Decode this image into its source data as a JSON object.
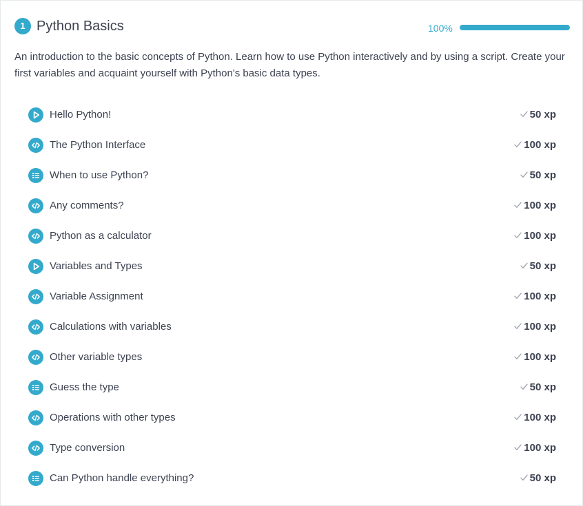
{
  "chapter": {
    "number": "1",
    "title": "Python Basics",
    "progress_label": "100%",
    "progress_value": 100,
    "description": "An introduction to the basic concepts of Python. Learn how to use Python interactively and by using a script. Create your first variables and acquaint yourself with Python's basic data types."
  },
  "colors": {
    "accent": "#33aacc",
    "text": "#3d4251",
    "track": "#e6eaeb",
    "check": "#9ea2ad"
  },
  "exercises": [
    {
      "icon": "video-play-icon",
      "title": "Hello Python!",
      "xp": "50 xp"
    },
    {
      "icon": "code-icon",
      "title": "The Python Interface",
      "xp": "100 xp"
    },
    {
      "icon": "multiple-choice-icon",
      "title": "When to use Python?",
      "xp": "50 xp"
    },
    {
      "icon": "code-icon",
      "title": "Any comments?",
      "xp": "100 xp"
    },
    {
      "icon": "code-icon",
      "title": "Python as a calculator",
      "xp": "100 xp"
    },
    {
      "icon": "video-play-icon",
      "title": "Variables and Types",
      "xp": "50 xp"
    },
    {
      "icon": "code-icon",
      "title": "Variable Assignment",
      "xp": "100 xp"
    },
    {
      "icon": "code-icon",
      "title": "Calculations with variables",
      "xp": "100 xp"
    },
    {
      "icon": "code-icon",
      "title": "Other variable types",
      "xp": "100 xp"
    },
    {
      "icon": "multiple-choice-icon",
      "title": "Guess the type",
      "xp": "50 xp"
    },
    {
      "icon": "code-icon",
      "title": "Operations with other types",
      "xp": "100 xp"
    },
    {
      "icon": "code-icon",
      "title": "Type conversion",
      "xp": "100 xp"
    },
    {
      "icon": "multiple-choice-icon",
      "title": "Can Python handle everything?",
      "xp": "50 xp"
    }
  ]
}
